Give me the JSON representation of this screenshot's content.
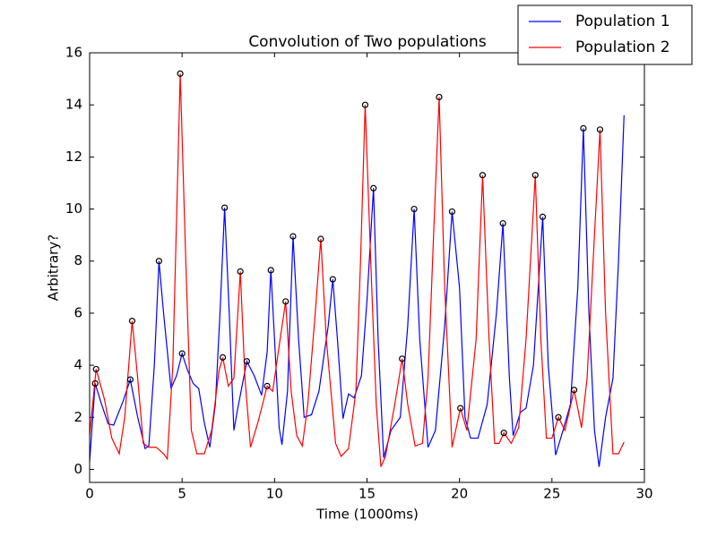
{
  "chart_data": {
    "type": "line",
    "title": "Convolution of Two populations",
    "xlabel": "Time (1000ms)",
    "ylabel": "Arbitrary?",
    "xlim": [
      0,
      30
    ],
    "ylim": [
      -0.5,
      16
    ],
    "xticks": [
      0,
      5,
      10,
      15,
      20,
      25,
      30
    ],
    "yticks": [
      0,
      2,
      4,
      6,
      8,
      10,
      12,
      14,
      16
    ],
    "legend": "upper right",
    "series": [
      {
        "name": "Population 1",
        "color": "#0000ff",
        "x": [
          0,
          0.3,
          0.6,
          1.0,
          1.3,
          1.8,
          2.2,
          2.6,
          3.0,
          3.2,
          3.5,
          3.75,
          4.0,
          4.4,
          4.7,
          5.0,
          5.3,
          5.6,
          5.9,
          6.2,
          6.5,
          6.8,
          7.05,
          7.3,
          7.55,
          7.8,
          8.0,
          8.5,
          8.9,
          9.3,
          9.6,
          9.8,
          10.0,
          10.25,
          10.4,
          10.7,
          11.0,
          11.3,
          11.6,
          12.0,
          12.4,
          12.9,
          13.15,
          13.4,
          13.7,
          14.0,
          14.3,
          14.7,
          15.0,
          15.35,
          15.6,
          15.9,
          16.3,
          16.8,
          17.2,
          17.55,
          17.85,
          18.3,
          18.7,
          19.2,
          19.6,
          20.0,
          20.3,
          20.6,
          21.0,
          21.5,
          22.0,
          22.35,
          22.7,
          22.9,
          23.3,
          23.6,
          24.0,
          24.5,
          24.8,
          25.2,
          25.6,
          26.0,
          26.4,
          26.7,
          27.0,
          27.3,
          27.55,
          27.9,
          28.3,
          28.6,
          28.9
        ],
        "values": [
          0.3,
          3.3,
          2.6,
          1.75,
          1.7,
          2.6,
          3.45,
          2.0,
          0.8,
          0.9,
          4,
          8.0,
          6,
          3.1,
          3.6,
          4.45,
          3.8,
          3.3,
          3.1,
          1.8,
          0.85,
          2.5,
          6,
          10.05,
          6,
          1.5,
          2.3,
          4.15,
          3.6,
          2.85,
          4.5,
          7.65,
          5,
          1.6,
          0.95,
          3,
          8.95,
          5,
          2.0,
          2.1,
          3.0,
          5.5,
          7.3,
          5,
          1.95,
          2.9,
          2.75,
          3.6,
          6.5,
          10.8,
          5,
          0.45,
          1.5,
          2.0,
          5.5,
          10.0,
          5,
          0.85,
          1.5,
          5.5,
          9.9,
          7.0,
          2,
          1.2,
          1.2,
          2.5,
          6,
          9.45,
          3.5,
          1.3,
          2.2,
          2.35,
          4,
          9.7,
          4,
          0.55,
          1.5,
          2.5,
          7,
          13.1,
          6,
          1.5,
          0.1,
          2,
          3.5,
          8,
          13.6
        ],
        "peaks_x": [
          0.3,
          2.2,
          3.75,
          5.0,
          7.3,
          8.5,
          9.8,
          11.0,
          13.15,
          15.35,
          17.55,
          19.6,
          22.35,
          24.5,
          26.7
        ],
        "peaks_y": [
          3.3,
          3.45,
          8.0,
          4.45,
          10.05,
          4.15,
          7.65,
          8.95,
          7.3,
          10.8,
          10.0,
          9.9,
          9.45,
          9.7,
          13.1
        ]
      },
      {
        "name": "Population 2",
        "color": "#ff0000",
        "x": [
          0,
          0.35,
          0.8,
          1.2,
          1.6,
          1.9,
          2.3,
          2.6,
          2.9,
          3.2,
          3.6,
          4.0,
          4.2,
          4.5,
          4.9,
          5.2,
          5.5,
          5.8,
          6.2,
          6.6,
          7.0,
          7.2,
          7.5,
          7.8,
          8.15,
          8.4,
          8.7,
          9.1,
          9.6,
          9.9,
          10.2,
          10.6,
          10.9,
          11.2,
          11.5,
          11.8,
          12.2,
          12.5,
          12.8,
          13.3,
          13.6,
          14.0,
          14.4,
          14.65,
          14.9,
          15.2,
          15.5,
          15.75,
          16.0,
          16.5,
          16.9,
          17.2,
          17.6,
          18.0,
          18.3,
          18.6,
          18.9,
          19.2,
          19.6,
          20.05,
          20.4,
          20.9,
          21.25,
          21.6,
          21.9,
          22.15,
          22.4,
          22.8,
          23.2,
          23.6,
          24.1,
          24.4,
          24.7,
          25.0,
          25.35,
          25.7,
          26.2,
          26.6,
          26.9,
          27.3,
          27.6,
          27.9,
          28.3,
          28.6,
          28.9
        ],
        "values": [
          1.3,
          3.85,
          2.7,
          1.2,
          0.6,
          2.0,
          5.7,
          3.5,
          1.0,
          0.85,
          0.85,
          0.6,
          0.4,
          4,
          15.2,
          8,
          1.5,
          0.6,
          0.6,
          1.5,
          3.8,
          4.3,
          3.2,
          3.5,
          7.6,
          3.5,
          0.85,
          1.8,
          3.2,
          3.0,
          4.5,
          6.45,
          3,
          1.3,
          0.9,
          2.5,
          6,
          8.85,
          5,
          1.0,
          0.5,
          0.8,
          3,
          8,
          14.0,
          8,
          2.5,
          0.1,
          0.5,
          2.5,
          4.25,
          2.5,
          0.9,
          1,
          3.5,
          9,
          14.3,
          7,
          0.85,
          2.35,
          1.5,
          5,
          11.3,
          5,
          1.0,
          1.0,
          1.4,
          1.0,
          1.6,
          5,
          11.3,
          5,
          1.2,
          1.2,
          2.0,
          1.5,
          3.05,
          1.6,
          3.5,
          9,
          13.05,
          6,
          0.6,
          0.6,
          1.05
        ],
        "peaks_x": [
          0.35,
          2.3,
          4.9,
          7.2,
          8.15,
          9.6,
          10.6,
          12.5,
          14.9,
          16.9,
          18.9,
          20.05,
          21.25,
          22.4,
          24.1,
          25.35,
          26.2,
          27.6
        ],
        "peaks_y": [
          3.85,
          5.7,
          15.2,
          4.3,
          7.6,
          3.2,
          6.45,
          8.85,
          14.0,
          4.25,
          14.3,
          2.35,
          11.3,
          1.4,
          11.3,
          2.0,
          3.05,
          13.05
        ]
      }
    ]
  }
}
